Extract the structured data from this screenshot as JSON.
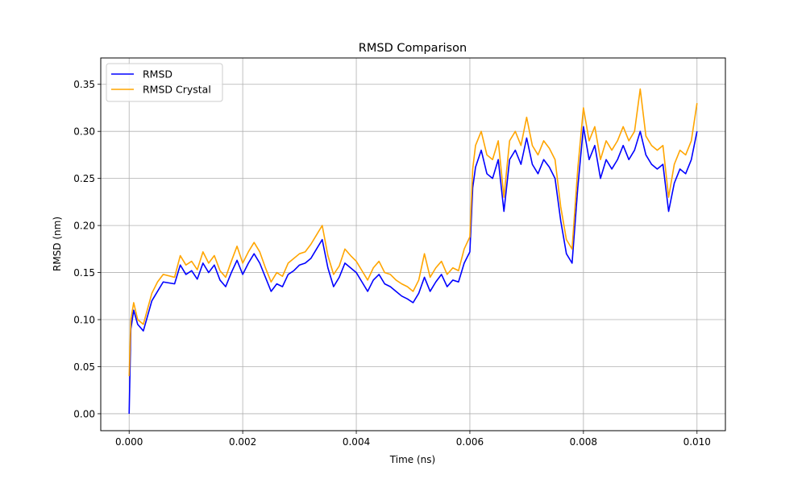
{
  "chart_data": {
    "type": "line",
    "title": "RMSD Comparison",
    "xlabel": "Time (ns)",
    "ylabel": "RMSD (nm)",
    "xlim": [
      -0.0005,
      0.0105
    ],
    "ylim": [
      -0.018,
      0.378
    ],
    "xticks": [
      0.0,
      0.002,
      0.004,
      0.006,
      0.008,
      0.01
    ],
    "xtick_labels": [
      "0.000",
      "0.002",
      "0.004",
      "0.006",
      "0.008",
      "0.010"
    ],
    "yticks": [
      0.0,
      0.05,
      0.1,
      0.15,
      0.2,
      0.25,
      0.3,
      0.35
    ],
    "ytick_labels": [
      "0.00",
      "0.05",
      "0.10",
      "0.15",
      "0.20",
      "0.25",
      "0.30",
      "0.35"
    ],
    "grid": true,
    "legend_position": "upper-left",
    "series": [
      {
        "name": "RMSD",
        "color": "#0000ff",
        "points": [
          [
            0.0,
            0.0
          ],
          [
            3e-05,
            0.09
          ],
          [
            8e-05,
            0.11
          ],
          [
            0.00015,
            0.095
          ],
          [
            0.00025,
            0.088
          ],
          [
            0.0004,
            0.12
          ],
          [
            0.0005,
            0.13
          ],
          [
            0.0006,
            0.14
          ],
          [
            0.0008,
            0.138
          ],
          [
            0.0009,
            0.158
          ],
          [
            0.001,
            0.148
          ],
          [
            0.0011,
            0.152
          ],
          [
            0.0012,
            0.143
          ],
          [
            0.0013,
            0.16
          ],
          [
            0.0014,
            0.15
          ],
          [
            0.0015,
            0.158
          ],
          [
            0.0016,
            0.142
          ],
          [
            0.0017,
            0.135
          ],
          [
            0.0018,
            0.15
          ],
          [
            0.0019,
            0.163
          ],
          [
            0.002,
            0.148
          ],
          [
            0.0021,
            0.16
          ],
          [
            0.0022,
            0.17
          ],
          [
            0.0023,
            0.16
          ],
          [
            0.0024,
            0.145
          ],
          [
            0.0025,
            0.13
          ],
          [
            0.0026,
            0.138
          ],
          [
            0.0027,
            0.135
          ],
          [
            0.0028,
            0.148
          ],
          [
            0.0029,
            0.152
          ],
          [
            0.003,
            0.158
          ],
          [
            0.0031,
            0.16
          ],
          [
            0.0032,
            0.165
          ],
          [
            0.0033,
            0.175
          ],
          [
            0.0034,
            0.185
          ],
          [
            0.0035,
            0.155
          ],
          [
            0.0036,
            0.135
          ],
          [
            0.0037,
            0.145
          ],
          [
            0.0038,
            0.16
          ],
          [
            0.0039,
            0.155
          ],
          [
            0.004,
            0.15
          ],
          [
            0.0041,
            0.14
          ],
          [
            0.0042,
            0.13
          ],
          [
            0.0043,
            0.142
          ],
          [
            0.0044,
            0.148
          ],
          [
            0.0045,
            0.138
          ],
          [
            0.0046,
            0.135
          ],
          [
            0.0047,
            0.13
          ],
          [
            0.0048,
            0.125
          ],
          [
            0.0049,
            0.122
          ],
          [
            0.005,
            0.118
          ],
          [
            0.0051,
            0.128
          ],
          [
            0.0052,
            0.145
          ],
          [
            0.0053,
            0.13
          ],
          [
            0.0054,
            0.14
          ],
          [
            0.0055,
            0.148
          ],
          [
            0.0056,
            0.135
          ],
          [
            0.0057,
            0.142
          ],
          [
            0.0058,
            0.14
          ],
          [
            0.0059,
            0.16
          ],
          [
            0.006,
            0.172
          ],
          [
            0.00605,
            0.24
          ],
          [
            0.0061,
            0.262
          ],
          [
            0.0062,
            0.28
          ],
          [
            0.0063,
            0.255
          ],
          [
            0.0064,
            0.25
          ],
          [
            0.0065,
            0.27
          ],
          [
            0.0066,
            0.215
          ],
          [
            0.0067,
            0.27
          ],
          [
            0.0068,
            0.28
          ],
          [
            0.0069,
            0.265
          ],
          [
            0.007,
            0.293
          ],
          [
            0.0071,
            0.265
          ],
          [
            0.0072,
            0.255
          ],
          [
            0.0073,
            0.27
          ],
          [
            0.0074,
            0.262
          ],
          [
            0.0075,
            0.25
          ],
          [
            0.0076,
            0.205
          ],
          [
            0.0077,
            0.17
          ],
          [
            0.0078,
            0.16
          ],
          [
            0.0079,
            0.24
          ],
          [
            0.008,
            0.305
          ],
          [
            0.0081,
            0.27
          ],
          [
            0.0082,
            0.285
          ],
          [
            0.0083,
            0.25
          ],
          [
            0.0084,
            0.27
          ],
          [
            0.0085,
            0.26
          ],
          [
            0.0086,
            0.27
          ],
          [
            0.0087,
            0.285
          ],
          [
            0.0088,
            0.27
          ],
          [
            0.0089,
            0.28
          ],
          [
            0.009,
            0.3
          ],
          [
            0.0091,
            0.275
          ],
          [
            0.0092,
            0.265
          ],
          [
            0.0093,
            0.26
          ],
          [
            0.0094,
            0.265
          ],
          [
            0.0095,
            0.215
          ],
          [
            0.0096,
            0.245
          ],
          [
            0.0097,
            0.26
          ],
          [
            0.0098,
            0.255
          ],
          [
            0.0099,
            0.27
          ],
          [
            0.01,
            0.3
          ]
        ]
      },
      {
        "name": "RMSD Crystal",
        "color": "#ffa500",
        "points": [
          [
            0.0,
            0.04
          ],
          [
            3e-05,
            0.1
          ],
          [
            8e-05,
            0.118
          ],
          [
            0.00015,
            0.1
          ],
          [
            0.00025,
            0.095
          ],
          [
            0.0004,
            0.128
          ],
          [
            0.0005,
            0.14
          ],
          [
            0.0006,
            0.148
          ],
          [
            0.0008,
            0.145
          ],
          [
            0.0009,
            0.168
          ],
          [
            0.001,
            0.158
          ],
          [
            0.0011,
            0.162
          ],
          [
            0.0012,
            0.153
          ],
          [
            0.0013,
            0.172
          ],
          [
            0.0014,
            0.16
          ],
          [
            0.0015,
            0.168
          ],
          [
            0.0016,
            0.152
          ],
          [
            0.0017,
            0.145
          ],
          [
            0.0018,
            0.162
          ],
          [
            0.0019,
            0.178
          ],
          [
            0.002,
            0.16
          ],
          [
            0.0021,
            0.172
          ],
          [
            0.0022,
            0.182
          ],
          [
            0.0023,
            0.172
          ],
          [
            0.0024,
            0.155
          ],
          [
            0.0025,
            0.14
          ],
          [
            0.0026,
            0.15
          ],
          [
            0.0027,
            0.146
          ],
          [
            0.0028,
            0.16
          ],
          [
            0.0029,
            0.165
          ],
          [
            0.003,
            0.17
          ],
          [
            0.0031,
            0.172
          ],
          [
            0.0032,
            0.18
          ],
          [
            0.0033,
            0.19
          ],
          [
            0.0034,
            0.2
          ],
          [
            0.0035,
            0.168
          ],
          [
            0.0036,
            0.148
          ],
          [
            0.0037,
            0.157
          ],
          [
            0.0038,
            0.175
          ],
          [
            0.0039,
            0.168
          ],
          [
            0.004,
            0.162
          ],
          [
            0.0041,
            0.152
          ],
          [
            0.0042,
            0.142
          ],
          [
            0.0043,
            0.155
          ],
          [
            0.0044,
            0.162
          ],
          [
            0.0045,
            0.15
          ],
          [
            0.0046,
            0.148
          ],
          [
            0.0047,
            0.142
          ],
          [
            0.0048,
            0.138
          ],
          [
            0.0049,
            0.135
          ],
          [
            0.005,
            0.13
          ],
          [
            0.0051,
            0.142
          ],
          [
            0.0052,
            0.17
          ],
          [
            0.0053,
            0.145
          ],
          [
            0.0054,
            0.155
          ],
          [
            0.0055,
            0.162
          ],
          [
            0.0056,
            0.148
          ],
          [
            0.0057,
            0.155
          ],
          [
            0.0058,
            0.152
          ],
          [
            0.0059,
            0.175
          ],
          [
            0.006,
            0.188
          ],
          [
            0.00605,
            0.26
          ],
          [
            0.0061,
            0.285
          ],
          [
            0.0062,
            0.3
          ],
          [
            0.0063,
            0.275
          ],
          [
            0.0064,
            0.27
          ],
          [
            0.0065,
            0.29
          ],
          [
            0.0066,
            0.23
          ],
          [
            0.0067,
            0.29
          ],
          [
            0.0068,
            0.3
          ],
          [
            0.0069,
            0.285
          ],
          [
            0.007,
            0.315
          ],
          [
            0.0071,
            0.285
          ],
          [
            0.0072,
            0.275
          ],
          [
            0.0073,
            0.29
          ],
          [
            0.0074,
            0.282
          ],
          [
            0.0075,
            0.27
          ],
          [
            0.0076,
            0.22
          ],
          [
            0.0077,
            0.185
          ],
          [
            0.0078,
            0.175
          ],
          [
            0.0079,
            0.26
          ],
          [
            0.008,
            0.325
          ],
          [
            0.0081,
            0.29
          ],
          [
            0.0082,
            0.305
          ],
          [
            0.0083,
            0.27
          ],
          [
            0.0084,
            0.29
          ],
          [
            0.0085,
            0.28
          ],
          [
            0.0086,
            0.29
          ],
          [
            0.0087,
            0.305
          ],
          [
            0.0088,
            0.29
          ],
          [
            0.0089,
            0.3
          ],
          [
            0.009,
            0.345
          ],
          [
            0.0091,
            0.295
          ],
          [
            0.0092,
            0.285
          ],
          [
            0.0093,
            0.28
          ],
          [
            0.0094,
            0.285
          ],
          [
            0.0095,
            0.23
          ],
          [
            0.0096,
            0.265
          ],
          [
            0.0097,
            0.28
          ],
          [
            0.0098,
            0.275
          ],
          [
            0.0099,
            0.29
          ],
          [
            0.01,
            0.33
          ]
        ]
      }
    ]
  }
}
